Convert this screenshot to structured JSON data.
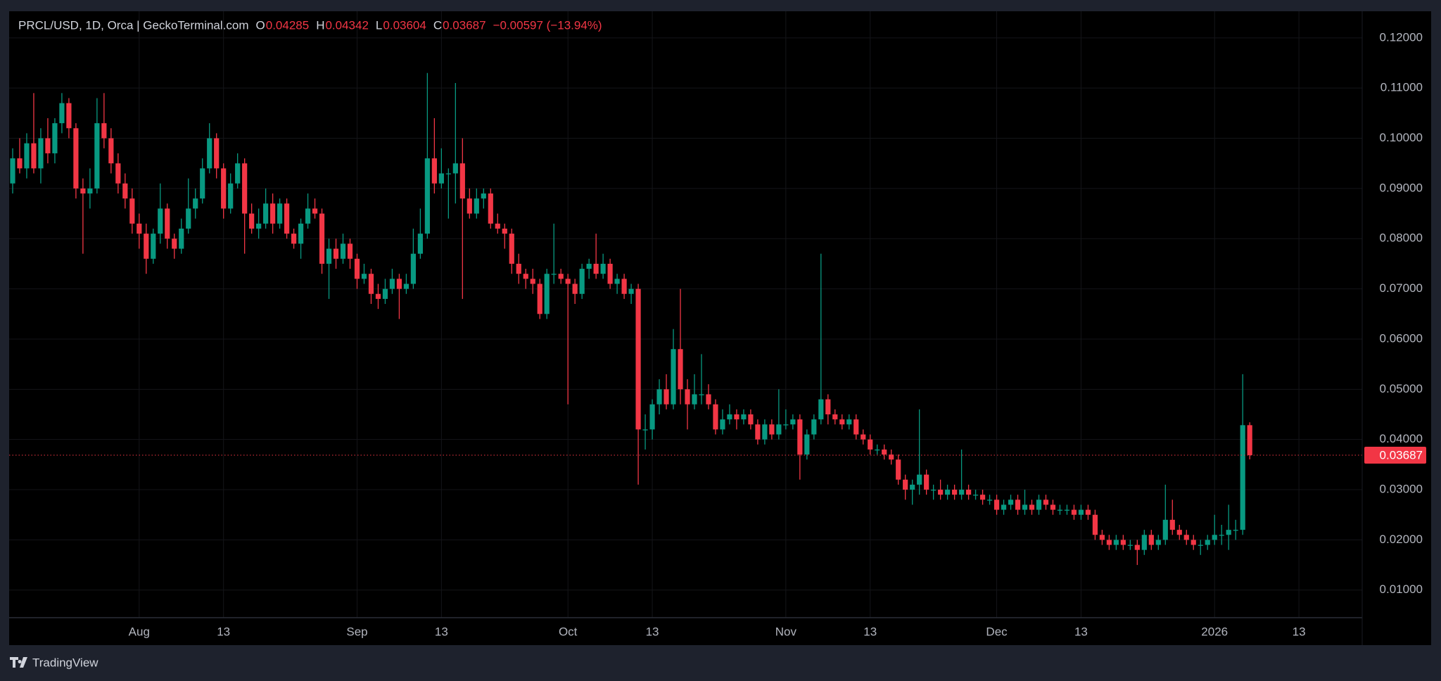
{
  "chart_data": {
    "type": "candlestick",
    "title": "PRCL/USD, 1D, Orca | GeckoTerminal.com",
    "ohlc_letters": [
      "O",
      "H",
      "L",
      "C"
    ],
    "change": "−0.00597 (−13.94%)",
    "brand": "TradingView",
    "up_color": "#089981",
    "down_color": "#f23645",
    "grid": true,
    "xlim": [
      -0.5,
      192
    ],
    "ylim": [
      0.0045,
      0.1253
    ],
    "yticks": [
      {
        "value": 0.01,
        "label": "0.01000"
      },
      {
        "value": 0.02,
        "label": "0.02000"
      },
      {
        "value": 0.03,
        "label": "0.03000"
      },
      {
        "value": 0.04,
        "label": "0.04000"
      },
      {
        "value": 0.05,
        "label": "0.05000"
      },
      {
        "value": 0.06,
        "label": "0.06000"
      },
      {
        "value": 0.07,
        "label": "0.07000"
      },
      {
        "value": 0.08,
        "label": "0.08000"
      },
      {
        "value": 0.09,
        "label": "0.09000"
      },
      {
        "value": 0.1,
        "label": "0.10000"
      },
      {
        "value": 0.11,
        "label": "0.11000"
      },
      {
        "value": 0.12,
        "label": "0.12000"
      }
    ],
    "xticks": [
      {
        "value": 18,
        "label": "Aug"
      },
      {
        "value": 30,
        "label": "13"
      },
      {
        "value": 49,
        "label": "Sep"
      },
      {
        "value": 61,
        "label": "13"
      },
      {
        "value": 79,
        "label": "Oct"
      },
      {
        "value": 91,
        "label": "13"
      },
      {
        "value": 110,
        "label": "Nov"
      },
      {
        "value": 122,
        "label": "13"
      },
      {
        "value": 140,
        "label": "Dec"
      },
      {
        "value": 152,
        "label": "13"
      },
      {
        "value": 171,
        "label": "2026"
      },
      {
        "value": 183,
        "label": "13"
      }
    ],
    "candles": [
      [
        0.091,
        0.098,
        0.089,
        0.096
      ],
      [
        0.096,
        0.1,
        0.093,
        0.094
      ],
      [
        0.094,
        0.101,
        0.092,
        0.099
      ],
      [
        0.099,
        0.109,
        0.093,
        0.094
      ],
      [
        0.094,
        0.102,
        0.091,
        0.1
      ],
      [
        0.1,
        0.104,
        0.095,
        0.097
      ],
      [
        0.097,
        0.104,
        0.095,
        0.103
      ],
      [
        0.103,
        0.109,
        0.101,
        0.107
      ],
      [
        0.107,
        0.108,
        0.1,
        0.102
      ],
      [
        0.102,
        0.103,
        0.088,
        0.09
      ],
      [
        0.09,
        0.092,
        0.077,
        0.089
      ],
      [
        0.089,
        0.094,
        0.086,
        0.09
      ],
      [
        0.09,
        0.108,
        0.089,
        0.103
      ],
      [
        0.103,
        0.109,
        0.098,
        0.1
      ],
      [
        0.1,
        0.102,
        0.093,
        0.095
      ],
      [
        0.095,
        0.097,
        0.089,
        0.091
      ],
      [
        0.091,
        0.093,
        0.086,
        0.088
      ],
      [
        0.088,
        0.09,
        0.081,
        0.083
      ],
      [
        0.083,
        0.085,
        0.078,
        0.081
      ],
      [
        0.081,
        0.083,
        0.073,
        0.076
      ],
      [
        0.076,
        0.082,
        0.075,
        0.081
      ],
      [
        0.081,
        0.091,
        0.079,
        0.086
      ],
      [
        0.086,
        0.087,
        0.078,
        0.08
      ],
      [
        0.08,
        0.081,
        0.076,
        0.078
      ],
      [
        0.078,
        0.084,
        0.077,
        0.082
      ],
      [
        0.082,
        0.092,
        0.081,
        0.086
      ],
      [
        0.086,
        0.09,
        0.084,
        0.088
      ],
      [
        0.088,
        0.096,
        0.087,
        0.094
      ],
      [
        0.094,
        0.103,
        0.093,
        0.1
      ],
      [
        0.1,
        0.101,
        0.092,
        0.094
      ],
      [
        0.094,
        0.095,
        0.084,
        0.086
      ],
      [
        0.086,
        0.093,
        0.085,
        0.091
      ],
      [
        0.091,
        0.097,
        0.09,
        0.095
      ],
      [
        0.095,
        0.096,
        0.077,
        0.085
      ],
      [
        0.085,
        0.087,
        0.081,
        0.082
      ],
      [
        0.082,
        0.086,
        0.08,
        0.083
      ],
      [
        0.083,
        0.09,
        0.082,
        0.087
      ],
      [
        0.087,
        0.089,
        0.081,
        0.083
      ],
      [
        0.083,
        0.088,
        0.082,
        0.087
      ],
      [
        0.087,
        0.088,
        0.08,
        0.081
      ],
      [
        0.081,
        0.082,
        0.078,
        0.079
      ],
      [
        0.079,
        0.084,
        0.076,
        0.083
      ],
      [
        0.083,
        0.089,
        0.082,
        0.086
      ],
      [
        0.086,
        0.088,
        0.084,
        0.085
      ],
      [
        0.085,
        0.086,
        0.073,
        0.075
      ],
      [
        0.075,
        0.08,
        0.068,
        0.078
      ],
      [
        0.078,
        0.08,
        0.074,
        0.076
      ],
      [
        0.076,
        0.081,
        0.075,
        0.079
      ],
      [
        0.079,
        0.08,
        0.074,
        0.076
      ],
      [
        0.076,
        0.077,
        0.07,
        0.072
      ],
      [
        0.072,
        0.075,
        0.071,
        0.073
      ],
      [
        0.073,
        0.074,
        0.067,
        0.069
      ],
      [
        0.069,
        0.071,
        0.066,
        0.068
      ],
      [
        0.068,
        0.072,
        0.067,
        0.07
      ],
      [
        0.07,
        0.074,
        0.069,
        0.072
      ],
      [
        0.072,
        0.073,
        0.064,
        0.07
      ],
      [
        0.07,
        0.073,
        0.069,
        0.071
      ],
      [
        0.071,
        0.082,
        0.07,
        0.077
      ],
      [
        0.077,
        0.086,
        0.076,
        0.081
      ],
      [
        0.081,
        0.113,
        0.08,
        0.096
      ],
      [
        0.096,
        0.104,
        0.089,
        0.091
      ],
      [
        0.091,
        0.098,
        0.09,
        0.093
      ],
      [
        0.093,
        0.094,
        0.084,
        0.093
      ],
      [
        0.093,
        0.111,
        0.087,
        0.095
      ],
      [
        0.095,
        0.1,
        0.068,
        0.088
      ],
      [
        0.088,
        0.09,
        0.084,
        0.085
      ],
      [
        0.085,
        0.09,
        0.084,
        0.088
      ],
      [
        0.088,
        0.09,
        0.086,
        0.089
      ],
      [
        0.089,
        0.09,
        0.082,
        0.083
      ],
      [
        0.083,
        0.085,
        0.081,
        0.082
      ],
      [
        0.082,
        0.083,
        0.078,
        0.081
      ],
      [
        0.081,
        0.082,
        0.073,
        0.075
      ],
      [
        0.075,
        0.077,
        0.071,
        0.073
      ],
      [
        0.073,
        0.074,
        0.07,
        0.072
      ],
      [
        0.072,
        0.074,
        0.069,
        0.071
      ],
      [
        0.071,
        0.072,
        0.064,
        0.065
      ],
      [
        0.065,
        0.074,
        0.064,
        0.073
      ],
      [
        0.073,
        0.083,
        0.071,
        0.073
      ],
      [
        0.073,
        0.074,
        0.071,
        0.072
      ],
      [
        0.072,
        0.073,
        0.047,
        0.071
      ],
      [
        0.071,
        0.072,
        0.067,
        0.069
      ],
      [
        0.069,
        0.075,
        0.068,
        0.074
      ],
      [
        0.074,
        0.076,
        0.072,
        0.075
      ],
      [
        0.075,
        0.081,
        0.072,
        0.073
      ],
      [
        0.073,
        0.077,
        0.072,
        0.075
      ],
      [
        0.075,
        0.076,
        0.07,
        0.071
      ],
      [
        0.071,
        0.073,
        0.069,
        0.072
      ],
      [
        0.072,
        0.073,
        0.068,
        0.069
      ],
      [
        0.069,
        0.071,
        0.067,
        0.07
      ],
      [
        0.07,
        0.071,
        0.031,
        0.042
      ],
      [
        0.042,
        0.045,
        0.038,
        0.042
      ],
      [
        0.042,
        0.048,
        0.04,
        0.047
      ],
      [
        0.047,
        0.052,
        0.045,
        0.05
      ],
      [
        0.05,
        0.053,
        0.046,
        0.047
      ],
      [
        0.047,
        0.062,
        0.046,
        0.058
      ],
      [
        0.058,
        0.07,
        0.047,
        0.05
      ],
      [
        0.05,
        0.052,
        0.042,
        0.047
      ],
      [
        0.047,
        0.053,
        0.046,
        0.049
      ],
      [
        0.049,
        0.057,
        0.047,
        0.049
      ],
      [
        0.049,
        0.051,
        0.046,
        0.047
      ],
      [
        0.047,
        0.048,
        0.041,
        0.042
      ],
      [
        0.042,
        0.046,
        0.041,
        0.044
      ],
      [
        0.044,
        0.047,
        0.043,
        0.045
      ],
      [
        0.045,
        0.046,
        0.042,
        0.044
      ],
      [
        0.044,
        0.046,
        0.043,
        0.045
      ],
      [
        0.045,
        0.046,
        0.042,
        0.043
      ],
      [
        0.043,
        0.044,
        0.039,
        0.04
      ],
      [
        0.04,
        0.044,
        0.039,
        0.043
      ],
      [
        0.043,
        0.044,
        0.04,
        0.041
      ],
      [
        0.041,
        0.05,
        0.04,
        0.043
      ],
      [
        0.043,
        0.046,
        0.042,
        0.043
      ],
      [
        0.043,
        0.045,
        0.042,
        0.044
      ],
      [
        0.044,
        0.045,
        0.032,
        0.037
      ],
      [
        0.037,
        0.042,
        0.036,
        0.041
      ],
      [
        0.041,
        0.045,
        0.04,
        0.044
      ],
      [
        0.044,
        0.077,
        0.043,
        0.048
      ],
      [
        0.048,
        0.049,
        0.043,
        0.045
      ],
      [
        0.045,
        0.046,
        0.043,
        0.044
      ],
      [
        0.044,
        0.045,
        0.042,
        0.043
      ],
      [
        0.043,
        0.045,
        0.042,
        0.044
      ],
      [
        0.044,
        0.045,
        0.04,
        0.041
      ],
      [
        0.041,
        0.042,
        0.039,
        0.04
      ],
      [
        0.04,
        0.041,
        0.037,
        0.038
      ],
      [
        0.038,
        0.039,
        0.037,
        0.038
      ],
      [
        0.038,
        0.039,
        0.036,
        0.037
      ],
      [
        0.037,
        0.038,
        0.035,
        0.036
      ],
      [
        0.036,
        0.037,
        0.031,
        0.032
      ],
      [
        0.032,
        0.033,
        0.028,
        0.03
      ],
      [
        0.03,
        0.032,
        0.027,
        0.031
      ],
      [
        0.031,
        0.046,
        0.029,
        0.033
      ],
      [
        0.033,
        0.034,
        0.029,
        0.03
      ],
      [
        0.03,
        0.031,
        0.028,
        0.03
      ],
      [
        0.03,
        0.032,
        0.028,
        0.029
      ],
      [
        0.029,
        0.031,
        0.028,
        0.03
      ],
      [
        0.03,
        0.031,
        0.028,
        0.029
      ],
      [
        0.029,
        0.038,
        0.028,
        0.03
      ],
      [
        0.03,
        0.031,
        0.028,
        0.029
      ],
      [
        0.029,
        0.03,
        0.028,
        0.029
      ],
      [
        0.029,
        0.03,
        0.027,
        0.028
      ],
      [
        0.028,
        0.029,
        0.027,
        0.028
      ],
      [
        0.028,
        0.029,
        0.025,
        0.026
      ],
      [
        0.026,
        0.028,
        0.025,
        0.027
      ],
      [
        0.027,
        0.029,
        0.026,
        0.028
      ],
      [
        0.028,
        0.029,
        0.025,
        0.026
      ],
      [
        0.026,
        0.03,
        0.025,
        0.027
      ],
      [
        0.027,
        0.028,
        0.025,
        0.026
      ],
      [
        0.026,
        0.029,
        0.025,
        0.028
      ],
      [
        0.028,
        0.029,
        0.026,
        0.027
      ],
      [
        0.027,
        0.028,
        0.025,
        0.026
      ],
      [
        0.026,
        0.027,
        0.025,
        0.026
      ],
      [
        0.026,
        0.027,
        0.025,
        0.026
      ],
      [
        0.026,
        0.027,
        0.024,
        0.025
      ],
      [
        0.025,
        0.027,
        0.024,
        0.026
      ],
      [
        0.026,
        0.027,
        0.024,
        0.025
      ],
      [
        0.025,
        0.026,
        0.02,
        0.021
      ],
      [
        0.021,
        0.022,
        0.019,
        0.02
      ],
      [
        0.02,
        0.021,
        0.018,
        0.019
      ],
      [
        0.019,
        0.021,
        0.018,
        0.02
      ],
      [
        0.02,
        0.021,
        0.018,
        0.019
      ],
      [
        0.019,
        0.02,
        0.018,
        0.019
      ],
      [
        0.019,
        0.02,
        0.015,
        0.018
      ],
      [
        0.018,
        0.022,
        0.017,
        0.021
      ],
      [
        0.021,
        0.022,
        0.018,
        0.019
      ],
      [
        0.019,
        0.021,
        0.018,
        0.02
      ],
      [
        0.02,
        0.031,
        0.019,
        0.024
      ],
      [
        0.024,
        0.028,
        0.021,
        0.022
      ],
      [
        0.022,
        0.023,
        0.02,
        0.021
      ],
      [
        0.021,
        0.022,
        0.019,
        0.02
      ],
      [
        0.02,
        0.021,
        0.018,
        0.019
      ],
      [
        0.019,
        0.02,
        0.017,
        0.019
      ],
      [
        0.019,
        0.021,
        0.018,
        0.02
      ],
      [
        0.02,
        0.025,
        0.019,
        0.021
      ],
      [
        0.021,
        0.023,
        0.019,
        0.021
      ],
      [
        0.021,
        0.027,
        0.018,
        0.022
      ],
      [
        0.022,
        0.024,
        0.02,
        0.022
      ],
      [
        0.022,
        0.053,
        0.021,
        0.04285
      ],
      [
        0.04285,
        0.04342,
        0.03604,
        0.03687
      ]
    ]
  }
}
